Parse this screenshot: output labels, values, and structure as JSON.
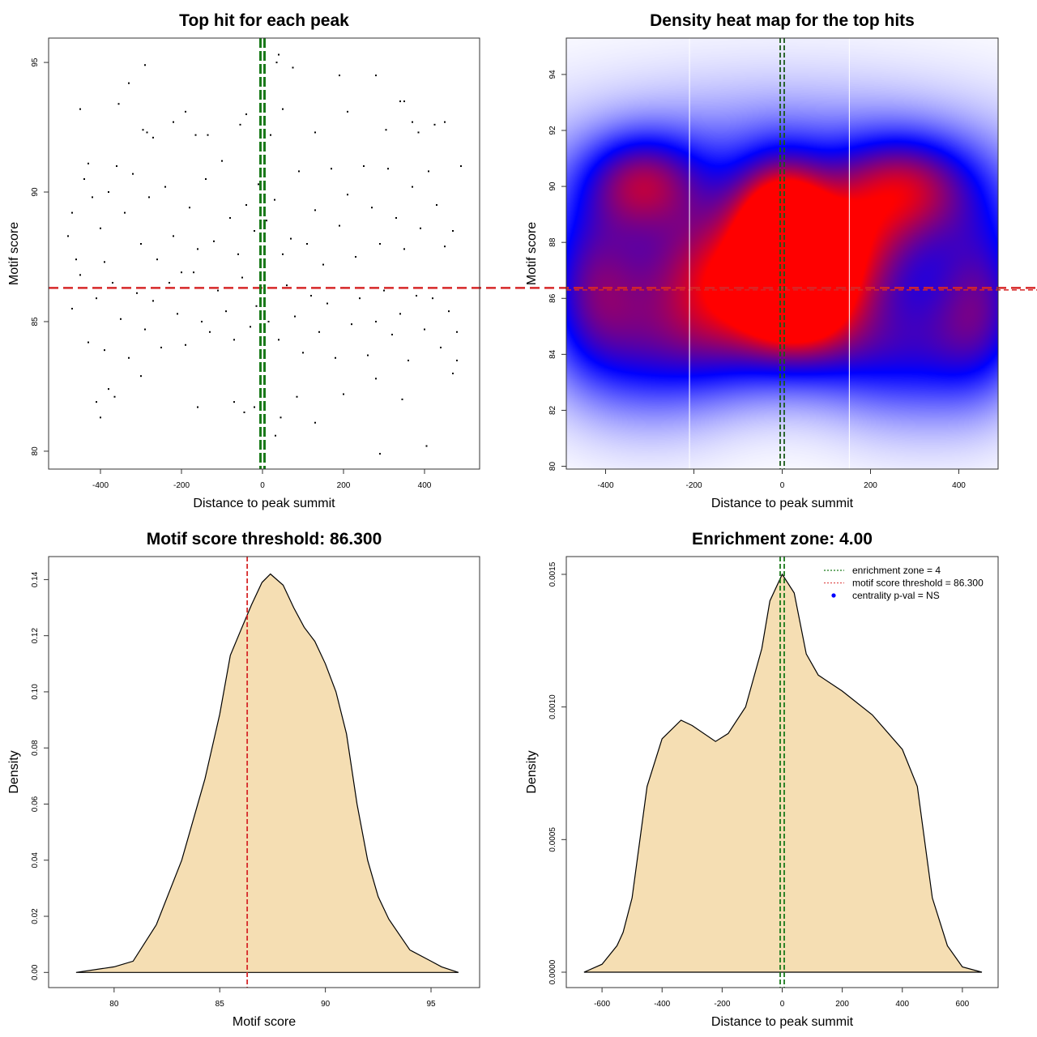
{
  "chart_data": [
    {
      "type": "scatter",
      "title": "Top hit for each peak",
      "xlabel": "Distance to peak summit",
      "ylabel": "Motif score",
      "xlim": [
        -528,
        536
      ],
      "ylim": [
        79.31,
        95.94
      ],
      "xticks": [
        -400,
        -200,
        0,
        200,
        400
      ],
      "yticks": [
        80,
        85,
        90,
        95
      ],
      "hlines": [
        {
          "value": 86.3,
          "color": "#d62728",
          "style": "dashed"
        }
      ],
      "vlines": [
        {
          "value": -4,
          "color": "#1a7a1a",
          "style": "dashed"
        },
        {
          "value": 4,
          "color": "#1a7a1a",
          "style": "dashed"
        }
      ],
      "points": [
        [
          -290,
          94.9
        ],
        [
          -330,
          94.2
        ],
        [
          -355,
          93.4
        ],
        [
          -450,
          93.2
        ],
        [
          -190,
          93.1
        ],
        [
          40,
          95.3
        ],
        [
          35,
          95.0
        ],
        [
          75,
          94.8
        ],
        [
          280,
          94.5
        ],
        [
          190,
          94.5
        ],
        [
          340,
          93.5
        ],
        [
          350,
          93.5
        ],
        [
          210,
          93.1
        ],
        [
          50,
          93.2
        ],
        [
          -40,
          93.0
        ],
        [
          -220,
          92.7
        ],
        [
          370,
          92.7
        ],
        [
          425,
          92.6
        ],
        [
          450,
          92.7
        ],
        [
          -295,
          92.4
        ],
        [
          -55,
          92.6
        ],
        [
          20,
          92.2
        ],
        [
          -135,
          92.2
        ],
        [
          -165,
          92.2
        ],
        [
          305,
          92.4
        ],
        [
          385,
          92.3
        ],
        [
          -270,
          92.1
        ],
        [
          -285,
          92.3
        ],
        [
          130,
          92.3
        ],
        [
          -480,
          88.3
        ],
        [
          -470,
          89.2
        ],
        [
          -460,
          87.4
        ],
        [
          -440,
          90.5
        ],
        [
          -430,
          91.1
        ],
        [
          -420,
          89.8
        ],
        [
          -400,
          88.6
        ],
        [
          -390,
          87.3
        ],
        [
          -380,
          90.0
        ],
        [
          -360,
          91.0
        ],
        [
          -340,
          89.2
        ],
        [
          -320,
          90.7
        ],
        [
          -300,
          88.0
        ],
        [
          -280,
          89.8
        ],
        [
          -260,
          87.4
        ],
        [
          -240,
          90.2
        ],
        [
          -220,
          88.3
        ],
        [
          -200,
          86.9
        ],
        [
          -180,
          89.4
        ],
        [
          -160,
          87.8
        ],
        [
          -140,
          90.5
        ],
        [
          -120,
          88.1
        ],
        [
          -100,
          91.2
        ],
        [
          -80,
          89.0
        ],
        [
          -60,
          87.6
        ],
        [
          -40,
          89.5
        ],
        [
          -20,
          88.5
        ],
        [
          -10,
          90.3
        ],
        [
          10,
          88.9
        ],
        [
          30,
          89.7
        ],
        [
          50,
          87.6
        ],
        [
          70,
          88.2
        ],
        [
          90,
          90.8
        ],
        [
          110,
          88.0
        ],
        [
          130,
          89.3
        ],
        [
          150,
          87.2
        ],
        [
          170,
          90.9
        ],
        [
          190,
          88.7
        ],
        [
          210,
          89.9
        ],
        [
          230,
          87.5
        ],
        [
          250,
          91.0
        ],
        [
          270,
          89.4
        ],
        [
          290,
          88.0
        ],
        [
          310,
          90.9
        ],
        [
          330,
          89.0
        ],
        [
          350,
          87.8
        ],
        [
          370,
          90.2
        ],
        [
          390,
          88.6
        ],
        [
          410,
          90.8
        ],
        [
          430,
          89.5
        ],
        [
          450,
          87.9
        ],
        [
          470,
          88.5
        ],
        [
          490,
          91.0
        ],
        [
          -470,
          85.5
        ],
        [
          -450,
          86.8
        ],
        [
          -430,
          84.2
        ],
        [
          -410,
          85.9
        ],
        [
          -390,
          83.9
        ],
        [
          -370,
          86.5
        ],
        [
          -350,
          85.1
        ],
        [
          -330,
          83.6
        ],
        [
          -310,
          86.1
        ],
        [
          -290,
          84.7
        ],
        [
          -270,
          85.8
        ],
        [
          -250,
          84.0
        ],
        [
          -230,
          86.5
        ],
        [
          -210,
          85.3
        ],
        [
          -190,
          84.1
        ],
        [
          -170,
          86.9
        ],
        [
          -150,
          85.0
        ],
        [
          -130,
          84.6
        ],
        [
          -110,
          86.2
        ],
        [
          -90,
          85.4
        ],
        [
          -70,
          84.3
        ],
        [
          -50,
          86.7
        ],
        [
          -30,
          84.8
        ],
        [
          -15,
          85.6
        ],
        [
          15,
          85.0
        ],
        [
          40,
          84.3
        ],
        [
          60,
          86.4
        ],
        [
          80,
          85.2
        ],
        [
          100,
          83.8
        ],
        [
          120,
          86.0
        ],
        [
          140,
          84.6
        ],
        [
          160,
          85.7
        ],
        [
          180,
          83.6
        ],
        [
          200,
          86.3
        ],
        [
          220,
          84.9
        ],
        [
          240,
          85.9
        ],
        [
          260,
          83.7
        ],
        [
          280,
          85.0
        ],
        [
          300,
          86.2
        ],
        [
          320,
          84.5
        ],
        [
          340,
          85.3
        ],
        [
          360,
          83.5
        ],
        [
          380,
          86.0
        ],
        [
          400,
          84.7
        ],
        [
          420,
          85.9
        ],
        [
          440,
          84.0
        ],
        [
          460,
          85.4
        ],
        [
          480,
          84.6
        ],
        [
          -410,
          81.9
        ],
        [
          -400,
          81.3
        ],
        [
          -380,
          82.4
        ],
        [
          -365,
          82.1
        ],
        [
          -300,
          82.9
        ],
        [
          -160,
          81.7
        ],
        [
          -70,
          81.9
        ],
        [
          -45,
          81.5
        ],
        [
          -20,
          81.7
        ],
        [
          45,
          81.3
        ],
        [
          85,
          82.1
        ],
        [
          130,
          81.1
        ],
        [
          200,
          82.2
        ],
        [
          290,
          79.9
        ],
        [
          345,
          82.0
        ],
        [
          405,
          80.2
        ],
        [
          280,
          82.8
        ],
        [
          32,
          80.6
        ],
        [
          470,
          83.0
        ],
        [
          480,
          83.5
        ]
      ]
    },
    {
      "type": "heatmap",
      "title": "Density heat map for the top hits",
      "xlabel": "Distance to peak summit",
      "ylabel": "Motif score",
      "xlim": [
        -489,
        489
      ],
      "ylim": [
        79.9,
        95.3
      ],
      "xticks": [
        -400,
        -200,
        0,
        200,
        400
      ],
      "yticks": [
        80,
        82,
        84,
        86,
        88,
        90,
        92,
        94
      ],
      "colors": [
        "#ffffff",
        "#0000ff",
        "#ff0000"
      ],
      "hlines": [
        {
          "value": 86.3,
          "color": "#d62728",
          "style": "dashed"
        }
      ],
      "vlines": [
        {
          "value": -4,
          "color": "#1a5a1a",
          "style": "dashed"
        },
        {
          "value": 4,
          "color": "#1a5a1a",
          "style": "dashed"
        },
        {
          "value": -210,
          "color": "#ffffff",
          "style": "solid"
        },
        {
          "value": 152,
          "color": "#ffffff",
          "style": "solid"
        }
      ]
    },
    {
      "type": "area",
      "title": "Motif score threshold: 86.300",
      "xlabel": "Motif score",
      "ylabel": "Density",
      "xlim": [
        76.9,
        97.3
      ],
      "ylim": [
        -0.0054,
        0.1482
      ],
      "xticks": [
        80,
        85,
        90,
        95
      ],
      "yticks": [
        0.0,
        0.02,
        0.04,
        0.06,
        0.08,
        0.1,
        0.12,
        0.14
      ],
      "ytick_labels": [
        "0.00",
        "0.02",
        "0.04",
        "0.06",
        "0.08",
        "0.10",
        "0.12",
        "0.14"
      ],
      "fill": "#f5deb3",
      "vlines": [
        {
          "value": 86.3,
          "color": "#d62728",
          "style": "dashed"
        }
      ],
      "x": [
        78.2,
        80,
        80.9,
        82,
        83.2,
        84.3,
        85,
        85.5,
        86,
        86.5,
        87,
        87.4,
        88,
        88.5,
        89,
        89.5,
        90,
        90.5,
        91,
        91.5,
        92,
        92.5,
        93,
        94,
        95,
        95.5,
        96.3
      ],
      "y": [
        0,
        0.002,
        0.004,
        0.017,
        0.04,
        0.069,
        0.092,
        0.113,
        0.122,
        0.131,
        0.139,
        0.142,
        0.138,
        0.13,
        0.123,
        0.118,
        0.11,
        0.1,
        0.085,
        0.06,
        0.04,
        0.027,
        0.019,
        0.008,
        0.004,
        0.002,
        0
      ]
    },
    {
      "type": "area",
      "title": "Enrichment zone: 4.00",
      "xlabel": "Distance to peak summit",
      "ylabel": "Density",
      "xlim": [
        -719,
        719
      ],
      "ylim": [
        -5.8e-05,
        0.001567
      ],
      "xticks": [
        -600,
        -400,
        -200,
        0,
        200,
        400,
        600
      ],
      "yticks": [
        0,
        0.0005,
        0.001,
        0.0015
      ],
      "ytick_labels": [
        "0.0000",
        "0.0005",
        "0.0010",
        "0.0015"
      ],
      "fill": "#f5deb3",
      "vlines": [
        {
          "value": -4,
          "color": "#1a7a1a",
          "style": "dashed"
        },
        {
          "value": 4,
          "color": "#1a7a1a",
          "style": "dashed"
        }
      ],
      "x": [
        -660,
        -600,
        -550,
        -530,
        -500,
        -450,
        -400,
        -337,
        -300,
        -222,
        -180,
        -122,
        -68,
        -41,
        0,
        40,
        80,
        120,
        200,
        300,
        400,
        450,
        500,
        550,
        600,
        665
      ],
      "y": [
        0,
        3e-05,
        0.0001,
        0.00015,
        0.00028,
        0.0007,
        0.00088,
        0.00095,
        0.00093,
        0.00087,
        0.0009,
        0.001,
        0.00122,
        0.0014,
        0.0015,
        0.00143,
        0.0012,
        0.00112,
        0.00106,
        0.00097,
        0.00084,
        0.0007,
        0.00028,
        0.0001,
        2e-05,
        0
      ],
      "legend": {
        "position": "top-right",
        "items": [
          {
            "label": "enrichment zone = 4",
            "color": "#1a7a1a",
            "symbol": "dotted-line"
          },
          {
            "label": "motif score threshold = 86.300",
            "color": "#e05050",
            "symbol": "dotted-line"
          },
          {
            "label": "centrality p-val = NS",
            "color": "#0000ff",
            "symbol": "dot"
          }
        ]
      }
    }
  ]
}
